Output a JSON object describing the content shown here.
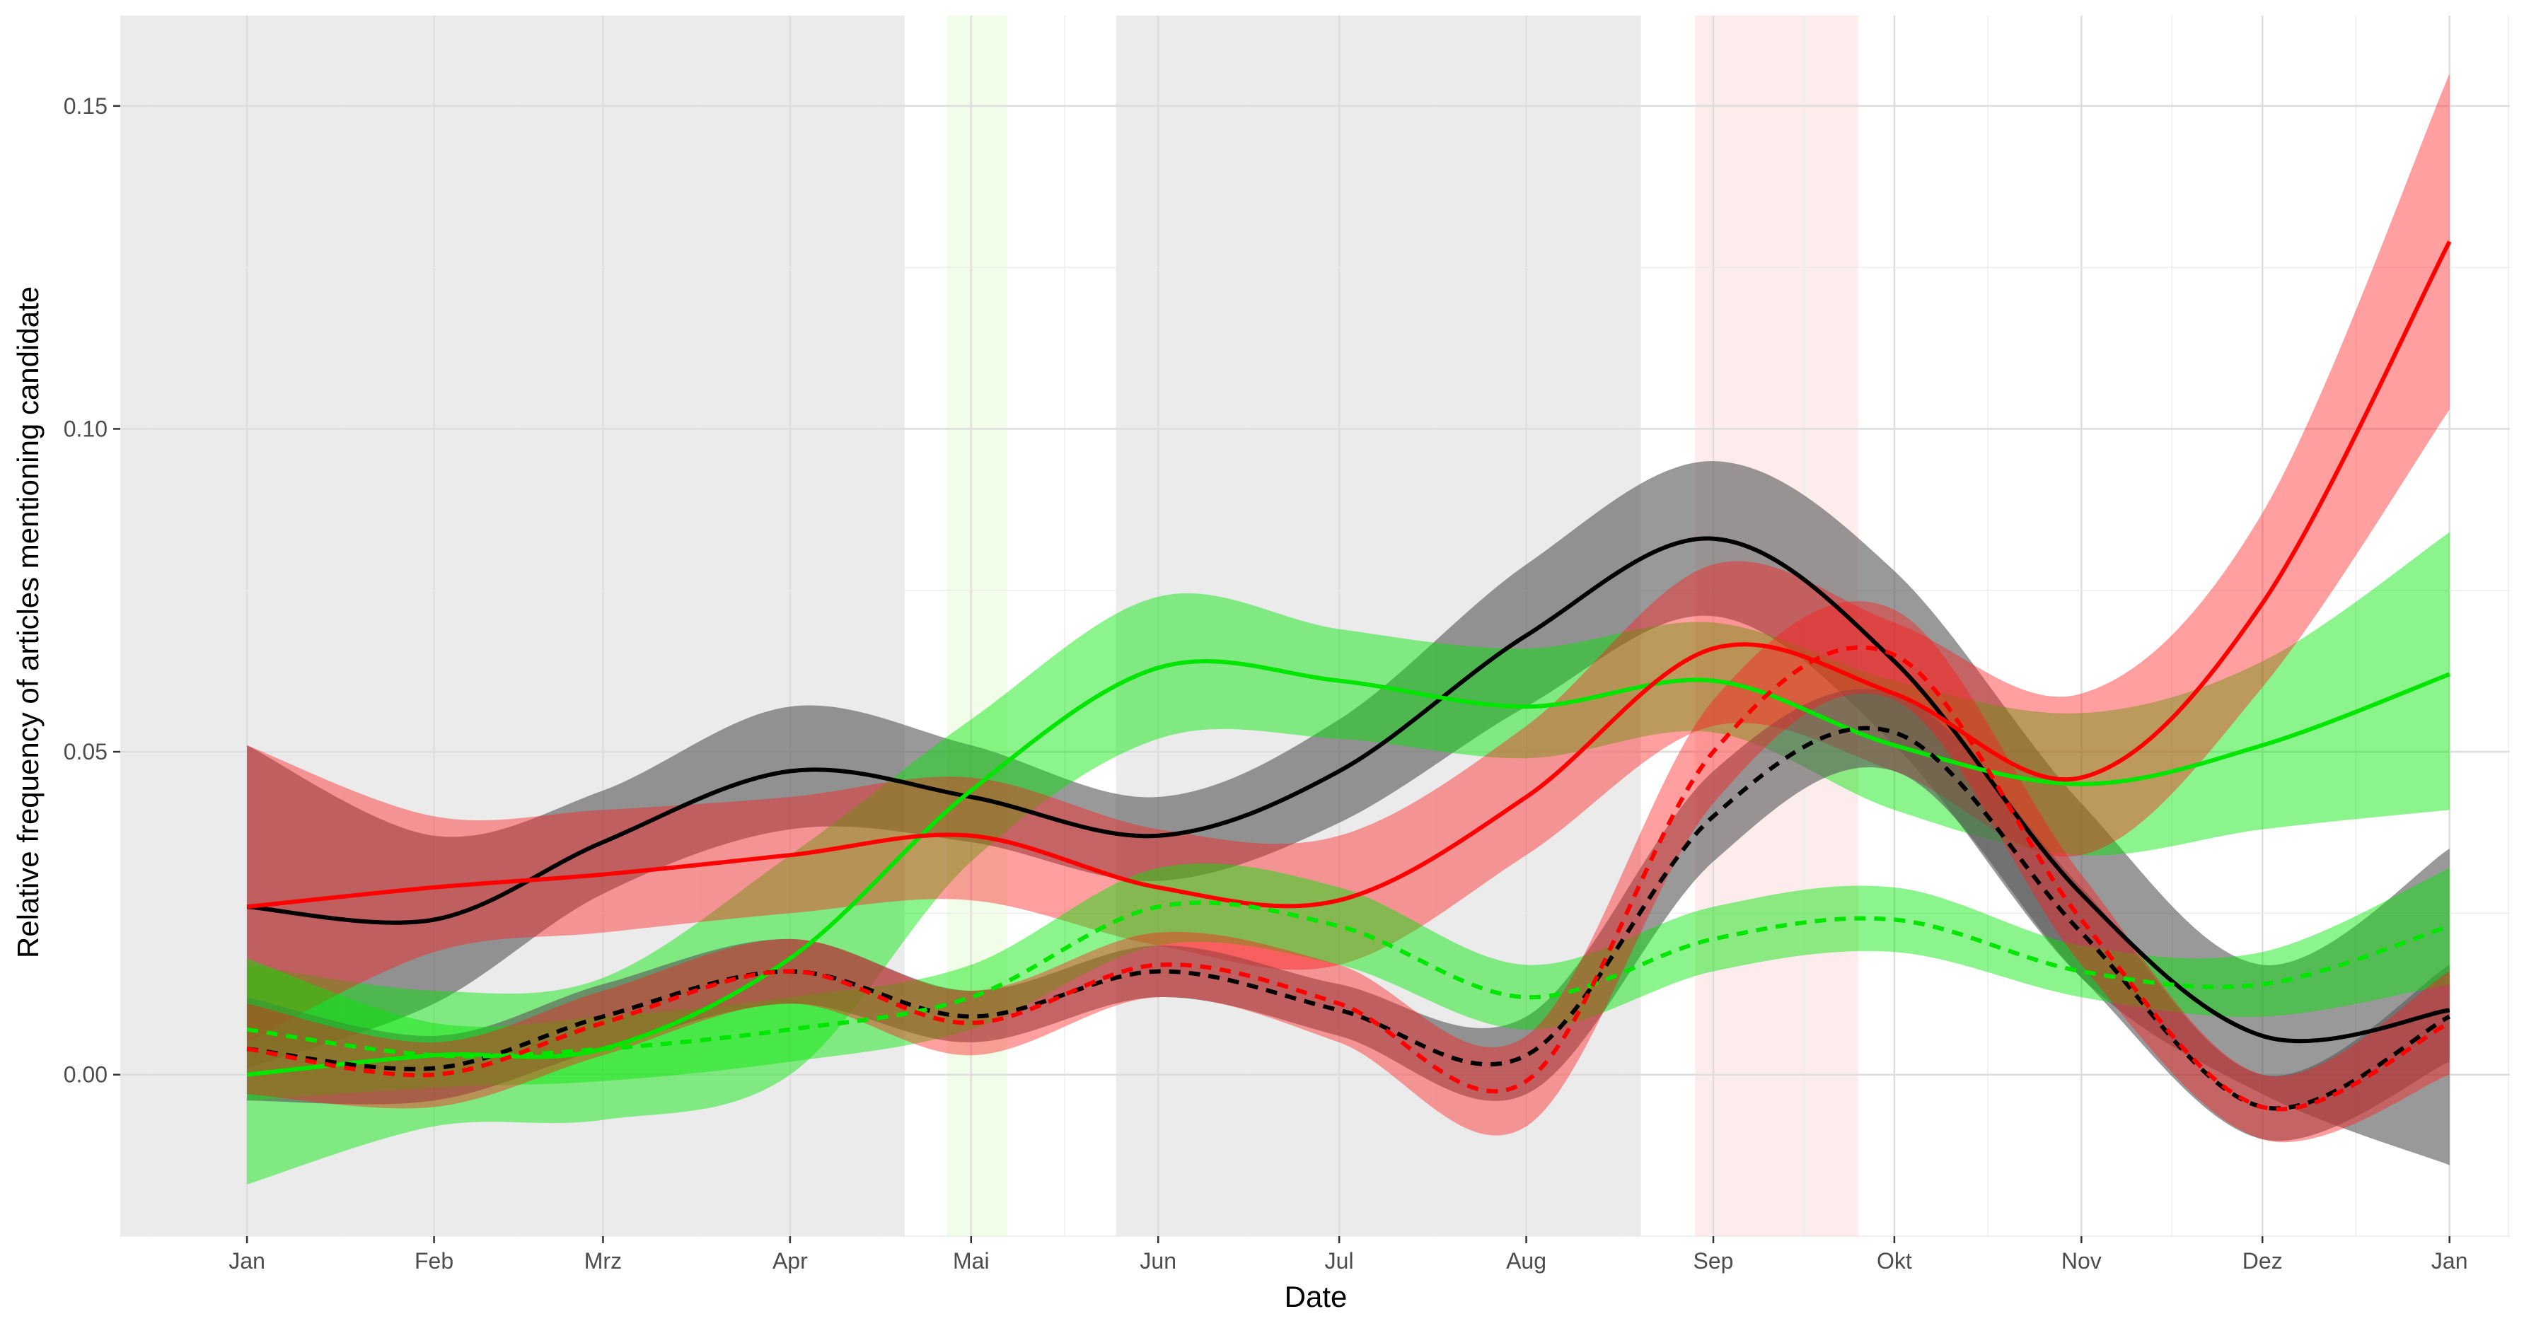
{
  "chart_data": {
    "type": "line",
    "xlabel": "Date",
    "ylabel": "Relative frequency of articles mentioning candidate",
    "x_axis_kind": "date",
    "xlim": [
      "2016-12-11",
      "2018-01-11"
    ],
    "ylim": [
      -0.025,
      0.164
    ],
    "grid": true,
    "x_ticks": [
      {
        "date": "2017-01-01",
        "label": "Jan"
      },
      {
        "date": "2017-02-01",
        "label": "Feb"
      },
      {
        "date": "2017-03-01",
        "label": "Mrz"
      },
      {
        "date": "2017-04-01",
        "label": "Apr"
      },
      {
        "date": "2017-05-01",
        "label": "Mai"
      },
      {
        "date": "2017-06-01",
        "label": "Jun"
      },
      {
        "date": "2017-07-01",
        "label": "Jul"
      },
      {
        "date": "2017-08-01",
        "label": "Aug"
      },
      {
        "date": "2017-09-01",
        "label": "Sep"
      },
      {
        "date": "2017-10-01",
        "label": "Okt"
      },
      {
        "date": "2017-11-01",
        "label": "Nov"
      },
      {
        "date": "2017-12-01",
        "label": "Dez"
      },
      {
        "date": "2018-01-01",
        "label": "Jan"
      }
    ],
    "y_ticks": [
      {
        "value": 0.0,
        "label": "0.00"
      },
      {
        "value": 0.05,
        "label": "0.05"
      },
      {
        "value": 0.1,
        "label": "0.10"
      },
      {
        "value": 0.15,
        "label": "0.15"
      }
    ],
    "shaded_periods": [
      {
        "start": "2016-12-11",
        "end": "2017-04-20",
        "color": "#ebebeb"
      },
      {
        "start": "2017-04-27",
        "end": "2017-05-07",
        "color": "#f1fde8"
      },
      {
        "start": "2017-05-25",
        "end": "2017-08-20",
        "color": "#ebebeb"
      },
      {
        "start": "2017-08-29",
        "end": "2017-09-25",
        "color": "#fcecec"
      }
    ],
    "series": [
      {
        "color": "#000000",
        "band_color": "#5a5a5a",
        "band_opacity": 0.62,
        "dashed": false,
        "x": [
          "2017-01-01",
          "2017-02-01",
          "2017-03-01",
          "2017-04-01",
          "2017-05-01",
          "2017-06-01",
          "2017-07-01",
          "2017-08-01",
          "2017-09-01",
          "2017-10-01",
          "2017-11-01",
          "2017-12-01",
          "2018-01-01"
        ],
        "y": [
          0.026,
          0.024,
          0.036,
          0.047,
          0.043,
          0.037,
          0.047,
          0.068,
          0.083,
          0.064,
          0.028,
          0.006,
          0.01
        ],
        "lower": [
          0.001,
          0.011,
          0.028,
          0.038,
          0.036,
          0.03,
          0.039,
          0.057,
          0.071,
          0.051,
          0.015,
          -0.003,
          -0.014
        ],
        "upper": [
          0.051,
          0.037,
          0.044,
          0.057,
          0.051,
          0.043,
          0.055,
          0.079,
          0.095,
          0.078,
          0.042,
          0.017,
          0.035
        ]
      },
      {
        "color": "#00e600",
        "band_color": "#00e600",
        "band_opacity": 0.45,
        "dashed": false,
        "x": [
          "2017-01-01",
          "2017-02-01",
          "2017-03-01",
          "2017-04-01",
          "2017-05-01",
          "2017-06-01",
          "2017-07-01",
          "2017-08-01",
          "2017-09-01",
          "2017-10-01",
          "2017-11-01",
          "2017-12-01",
          "2018-01-01"
        ],
        "y": [
          0.0,
          0.003,
          0.004,
          0.018,
          0.044,
          0.063,
          0.061,
          0.057,
          0.061,
          0.051,
          0.045,
          0.051,
          0.062
        ],
        "lower": [
          -0.017,
          -0.008,
          -0.007,
          0.0,
          0.033,
          0.052,
          0.052,
          0.049,
          0.053,
          0.041,
          0.034,
          0.038,
          0.041
        ],
        "upper": [
          0.017,
          0.013,
          0.015,
          0.034,
          0.055,
          0.074,
          0.069,
          0.066,
          0.07,
          0.061,
          0.056,
          0.064,
          0.084
        ]
      },
      {
        "color": "#ff0000",
        "band_color": "#ff1a1a",
        "band_opacity": 0.42,
        "dashed": false,
        "x": [
          "2017-01-01",
          "2017-02-01",
          "2017-03-01",
          "2017-04-01",
          "2017-05-01",
          "2017-06-01",
          "2017-07-01",
          "2017-08-01",
          "2017-09-01",
          "2017-10-01",
          "2017-11-01",
          "2017-12-01",
          "2018-01-01"
        ],
        "y": [
          0.026,
          0.029,
          0.031,
          0.034,
          0.037,
          0.029,
          0.027,
          0.043,
          0.066,
          0.059,
          0.046,
          0.073,
          0.129
        ],
        "lower": [
          0.005,
          0.019,
          0.022,
          0.025,
          0.027,
          0.02,
          0.017,
          0.034,
          0.054,
          0.047,
          0.034,
          0.06,
          0.103
        ],
        "upper": [
          0.051,
          0.04,
          0.041,
          0.043,
          0.046,
          0.038,
          0.037,
          0.054,
          0.079,
          0.07,
          0.059,
          0.087,
          0.155
        ]
      },
      {
        "color": "#000000",
        "band_color": "#5a5a5a",
        "band_opacity": 0.62,
        "dashed": true,
        "x": [
          "2017-01-01",
          "2017-02-01",
          "2017-03-01",
          "2017-04-01",
          "2017-05-01",
          "2017-06-01",
          "2017-07-01",
          "2017-08-01",
          "2017-09-01",
          "2017-10-01",
          "2017-11-01",
          "2017-12-01",
          "2018-01-01"
        ],
        "y": [
          0.004,
          0.001,
          0.009,
          0.016,
          0.009,
          0.016,
          0.01,
          0.003,
          0.04,
          0.053,
          0.022,
          -0.005,
          0.009
        ],
        "lower": [
          -0.004,
          -0.004,
          0.004,
          0.011,
          0.005,
          0.012,
          0.006,
          -0.003,
          0.033,
          0.047,
          0.015,
          -0.01,
          0.002
        ],
        "upper": [
          0.012,
          0.006,
          0.014,
          0.021,
          0.013,
          0.02,
          0.014,
          0.009,
          0.047,
          0.059,
          0.029,
          0.0,
          0.017
        ]
      },
      {
        "color": "#00e600",
        "band_color": "#00e600",
        "band_opacity": 0.45,
        "dashed": true,
        "x": [
          "2017-01-01",
          "2017-02-01",
          "2017-03-01",
          "2017-04-01",
          "2017-05-01",
          "2017-06-01",
          "2017-07-01",
          "2017-08-01",
          "2017-09-01",
          "2017-10-01",
          "2017-11-01",
          "2017-12-01",
          "2018-01-01"
        ],
        "y": [
          0.007,
          0.003,
          0.004,
          0.007,
          0.012,
          0.026,
          0.023,
          0.012,
          0.021,
          0.024,
          0.016,
          0.014,
          0.023
        ],
        "lower": [
          -0.004,
          -0.002,
          -0.001,
          0.002,
          0.007,
          0.02,
          0.017,
          0.007,
          0.016,
          0.019,
          0.012,
          0.009,
          0.014
        ],
        "upper": [
          0.018,
          0.008,
          0.009,
          0.012,
          0.017,
          0.032,
          0.029,
          0.017,
          0.026,
          0.029,
          0.02,
          0.019,
          0.032
        ]
      },
      {
        "color": "#ff0000",
        "band_color": "#ff1a1a",
        "band_opacity": 0.42,
        "dashed": true,
        "x": [
          "2017-01-01",
          "2017-02-01",
          "2017-03-01",
          "2017-04-01",
          "2017-05-01",
          "2017-06-01",
          "2017-07-01",
          "2017-08-01",
          "2017-09-01",
          "2017-10-01",
          "2017-11-01",
          "2017-12-01",
          "2018-01-01"
        ],
        "y": [
          0.004,
          0.0,
          0.008,
          0.016,
          0.008,
          0.017,
          0.011,
          -0.001,
          0.05,
          0.065,
          0.024,
          -0.005,
          0.008
        ],
        "lower": [
          -0.003,
          -0.005,
          0.003,
          0.011,
          0.003,
          0.012,
          0.005,
          -0.008,
          0.042,
          0.058,
          0.017,
          -0.01,
          0.0
        ],
        "upper": [
          0.011,
          0.005,
          0.013,
          0.021,
          0.013,
          0.022,
          0.017,
          0.006,
          0.058,
          0.072,
          0.031,
          0.0,
          0.016
        ]
      }
    ]
  }
}
